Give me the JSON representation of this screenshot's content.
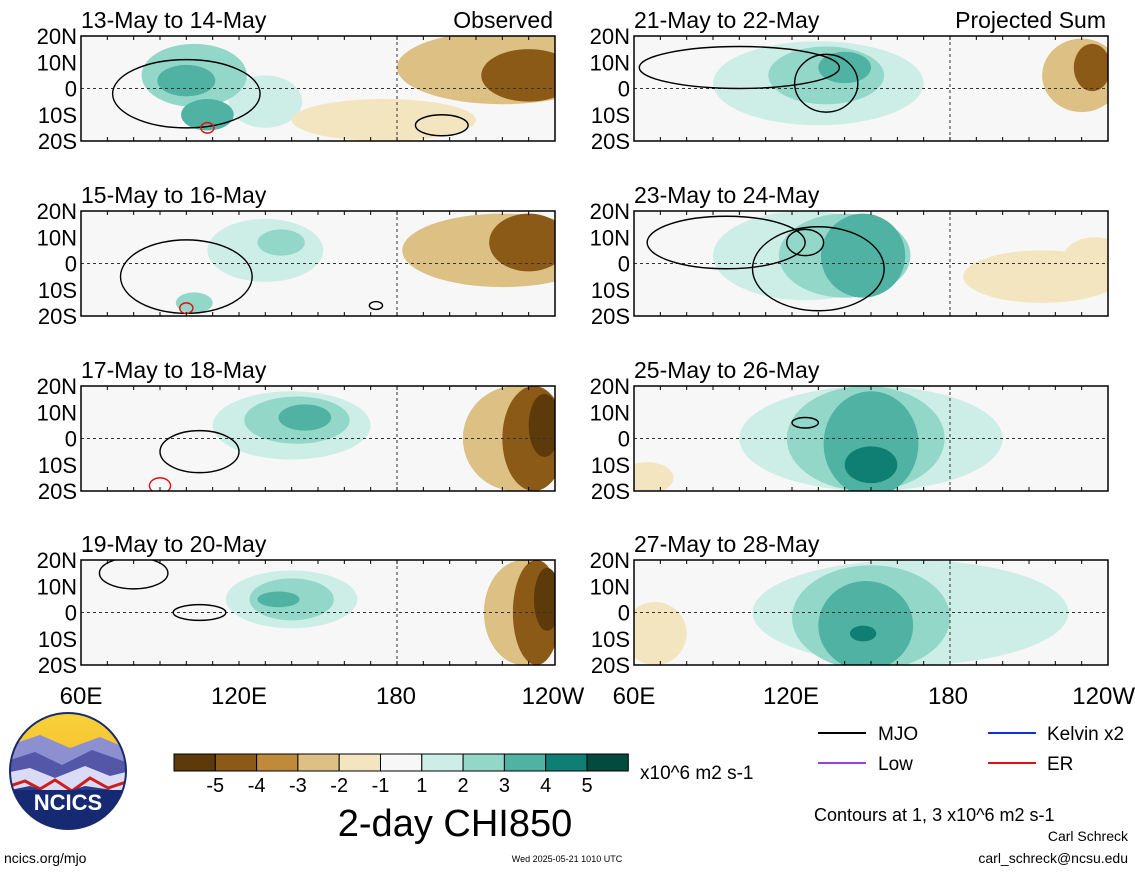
{
  "chart_data": {
    "type": "heatmap",
    "variable_title": "2-day CHI850",
    "units": "x10^6 m2 s-1",
    "labels": {
      "observed": "Observed",
      "projected": "Projected Sum"
    },
    "y_ticks": [
      "20N",
      "10N",
      "0",
      "10S",
      "20S"
    ],
    "x_ticks": [
      "60E",
      "120E",
      "180",
      "120W"
    ],
    "x_range": [
      60,
      240
    ],
    "y_range": [
      -20,
      20
    ],
    "colorbar": {
      "tick_labels": [
        "-5",
        "-4",
        "-3",
        "-2",
        "-1",
        "1",
        "2",
        "3",
        "4",
        "5"
      ],
      "colors": [
        "#5c3a09",
        "#8c5a17",
        "#bf8a3a",
        "#dcc084",
        "#f3e5bf",
        "#f7f7f7",
        "#cdeee6",
        "#93d7c9",
        "#4fb2a3",
        "#0e7f72",
        "#034a3f"
      ]
    },
    "contour_note": "Contours at 1, 3 x10^6 m2 s-1",
    "legend": [
      {
        "name": "MJO",
        "color": "#000000"
      },
      {
        "name": "Kelvin x2",
        "color": "#1030e0"
      },
      {
        "name": "Low",
        "color": "#9a3fe0"
      },
      {
        "name": "ER",
        "color": "#e01010"
      }
    ],
    "panels": [
      {
        "date": "13-May to 14-May",
        "fill": [
          {
            "lon": 103,
            "lat": 5,
            "rx": 20,
            "ry": 12,
            "v": 2
          },
          {
            "lon": 100,
            "lat": 3,
            "rx": 11,
            "ry": 6,
            "v": 3
          },
          {
            "lon": 108,
            "lat": -10,
            "rx": 10,
            "ry": 6,
            "v": 3
          },
          {
            "lon": 130,
            "lat": -5,
            "rx": 14,
            "ry": 10,
            "v": 1
          },
          {
            "lon": 220,
            "lat": 8,
            "rx": 40,
            "ry": 14,
            "v": -2
          },
          {
            "lon": 230,
            "lat": 5,
            "rx": 18,
            "ry": 10,
            "v": -4
          },
          {
            "lon": 175,
            "lat": -12,
            "rx": 35,
            "ry": 8,
            "v": -1
          }
        ],
        "contours": [
          {
            "lon": 100,
            "lat": -2,
            "rx": 28,
            "ry": 13,
            "c": "MJO"
          },
          {
            "lon": 197,
            "lat": -14,
            "rx": 10,
            "ry": 4,
            "c": "MJO"
          },
          {
            "lon": 108,
            "lat": -15,
            "rx": 2.5,
            "ry": 2,
            "c": "ER"
          }
        ]
      },
      {
        "date": "21-May to 22-May",
        "fill": [
          {
            "lon": 130,
            "lat": 2,
            "rx": 40,
            "ry": 16,
            "v": 1
          },
          {
            "lon": 133,
            "lat": 5,
            "rx": 22,
            "ry": 11,
            "v": 2
          },
          {
            "lon": 140,
            "lat": 8,
            "rx": 10,
            "ry": 6,
            "v": 3
          },
          {
            "lon": 230,
            "lat": 5,
            "rx": 15,
            "ry": 14,
            "v": -2
          },
          {
            "lon": 234,
            "lat": 8,
            "rx": 7,
            "ry": 9,
            "v": -4
          }
        ],
        "contours": [
          {
            "lon": 100,
            "lat": 8,
            "rx": 38,
            "ry": 8,
            "c": "MJO"
          },
          {
            "lon": 133,
            "lat": 2,
            "rx": 12,
            "ry": 11,
            "c": "MJO"
          }
        ]
      },
      {
        "date": "15-May to 16-May",
        "fill": [
          {
            "lon": 130,
            "lat": 5,
            "rx": 22,
            "ry": 12,
            "v": 1
          },
          {
            "lon": 136,
            "lat": 8,
            "rx": 9,
            "ry": 5,
            "v": 2
          },
          {
            "lon": 103,
            "lat": -15,
            "rx": 7,
            "ry": 4,
            "v": 2
          },
          {
            "lon": 220,
            "lat": 5,
            "rx": 38,
            "ry": 14,
            "v": -2
          },
          {
            "lon": 230,
            "lat": 8,
            "rx": 15,
            "ry": 11,
            "v": -4
          }
        ],
        "contours": [
          {
            "lon": 100,
            "lat": -5,
            "rx": 25,
            "ry": 14,
            "c": "MJO"
          },
          {
            "lon": 172,
            "lat": -16,
            "rx": 2.5,
            "ry": 1.5,
            "c": "MJO"
          },
          {
            "lon": 100,
            "lat": -17,
            "rx": 2.5,
            "ry": 2,
            "c": "ER"
          }
        ]
      },
      {
        "date": "23-May to 24-May",
        "fill": [
          {
            "lon": 125,
            "lat": 3,
            "rx": 35,
            "ry": 17,
            "v": 1
          },
          {
            "lon": 140,
            "lat": 3,
            "rx": 25,
            "ry": 16,
            "v": 2
          },
          {
            "lon": 147,
            "lat": 3,
            "rx": 16,
            "ry": 16,
            "v": 3
          },
          {
            "lon": 215,
            "lat": -5,
            "rx": 30,
            "ry": 10,
            "v": -1
          },
          {
            "lon": 235,
            "lat": 2,
            "rx": 12,
            "ry": 8,
            "v": -1
          }
        ],
        "contours": [
          {
            "lon": 95,
            "lat": 8,
            "rx": 30,
            "ry": 10,
            "c": "MJO"
          },
          {
            "lon": 130,
            "lat": -2,
            "rx": 25,
            "ry": 16,
            "c": "MJO"
          },
          {
            "lon": 125,
            "lat": 8,
            "rx": 7,
            "ry": 5,
            "c": "MJO"
          }
        ]
      },
      {
        "date": "17-May to 18-May",
        "fill": [
          {
            "lon": 140,
            "lat": 5,
            "rx": 30,
            "ry": 13,
            "v": 1
          },
          {
            "lon": 142,
            "lat": 7,
            "rx": 20,
            "ry": 9,
            "v": 2
          },
          {
            "lon": 145,
            "lat": 8,
            "rx": 10,
            "ry": 5,
            "v": 3
          },
          {
            "lon": 225,
            "lat": 0,
            "rx": 20,
            "ry": 20,
            "v": -2
          },
          {
            "lon": 232,
            "lat": 0,
            "rx": 12,
            "ry": 20,
            "v": -4
          },
          {
            "lon": 236,
            "lat": 5,
            "rx": 6,
            "ry": 12,
            "v": -5
          }
        ],
        "contours": [
          {
            "lon": 105,
            "lat": -5,
            "rx": 15,
            "ry": 8,
            "c": "MJO"
          },
          {
            "lon": 90,
            "lat": -18,
            "rx": 4,
            "ry": 3,
            "c": "ER"
          }
        ]
      },
      {
        "date": "25-May to 26-May",
        "fill": [
          {
            "lon": 150,
            "lat": 0,
            "rx": 50,
            "ry": 20,
            "v": 1
          },
          {
            "lon": 148,
            "lat": 0,
            "rx": 30,
            "ry": 20,
            "v": 2
          },
          {
            "lon": 150,
            "lat": -2,
            "rx": 18,
            "ry": 20,
            "v": 3
          },
          {
            "lon": 150,
            "lat": -10,
            "rx": 10,
            "ry": 7,
            "v": 4
          },
          {
            "lon": 65,
            "lat": -15,
            "rx": 10,
            "ry": 6,
            "v": -1
          }
        ],
        "contours": [
          {
            "lon": 125,
            "lat": 6,
            "rx": 5,
            "ry": 2,
            "c": "MJO"
          }
        ]
      },
      {
        "date": "19-May to 20-May",
        "fill": [
          {
            "lon": 140,
            "lat": 5,
            "rx": 25,
            "ry": 11,
            "v": 1
          },
          {
            "lon": 140,
            "lat": 5,
            "rx": 16,
            "ry": 8,
            "v": 2
          },
          {
            "lon": 135,
            "lat": 5,
            "rx": 8,
            "ry": 3,
            "v": 3
          },
          {
            "lon": 228,
            "lat": 0,
            "rx": 15,
            "ry": 20,
            "v": -2
          },
          {
            "lon": 233,
            "lat": 0,
            "rx": 9,
            "ry": 20,
            "v": -4
          },
          {
            "lon": 237,
            "lat": 5,
            "rx": 5,
            "ry": 12,
            "v": -5
          }
        ],
        "contours": [
          {
            "lon": 80,
            "lat": 15,
            "rx": 13,
            "ry": 6,
            "c": "MJO"
          },
          {
            "lon": 105,
            "lat": 0,
            "rx": 10,
            "ry": 3,
            "c": "MJO"
          }
        ]
      },
      {
        "date": "27-May to 28-May",
        "fill": [
          {
            "lon": 165,
            "lat": 0,
            "rx": 60,
            "ry": 20,
            "v": 1
          },
          {
            "lon": 150,
            "lat": -2,
            "rx": 30,
            "ry": 20,
            "v": 2
          },
          {
            "lon": 148,
            "lat": -5,
            "rx": 18,
            "ry": 17,
            "v": 3
          },
          {
            "lon": 147,
            "lat": -8,
            "rx": 5,
            "ry": 3,
            "v": 4
          },
          {
            "lon": 68,
            "lat": -8,
            "rx": 12,
            "ry": 12,
            "v": -1
          }
        ],
        "contours": []
      }
    ]
  },
  "footer": {
    "logo_text": "NCICS",
    "url": "ncics.org/mjo",
    "timestamp": "Wed 2025-05-21 1010 UTC",
    "author": "Carl Schreck",
    "email": "carl_schreck@ncsu.edu"
  }
}
